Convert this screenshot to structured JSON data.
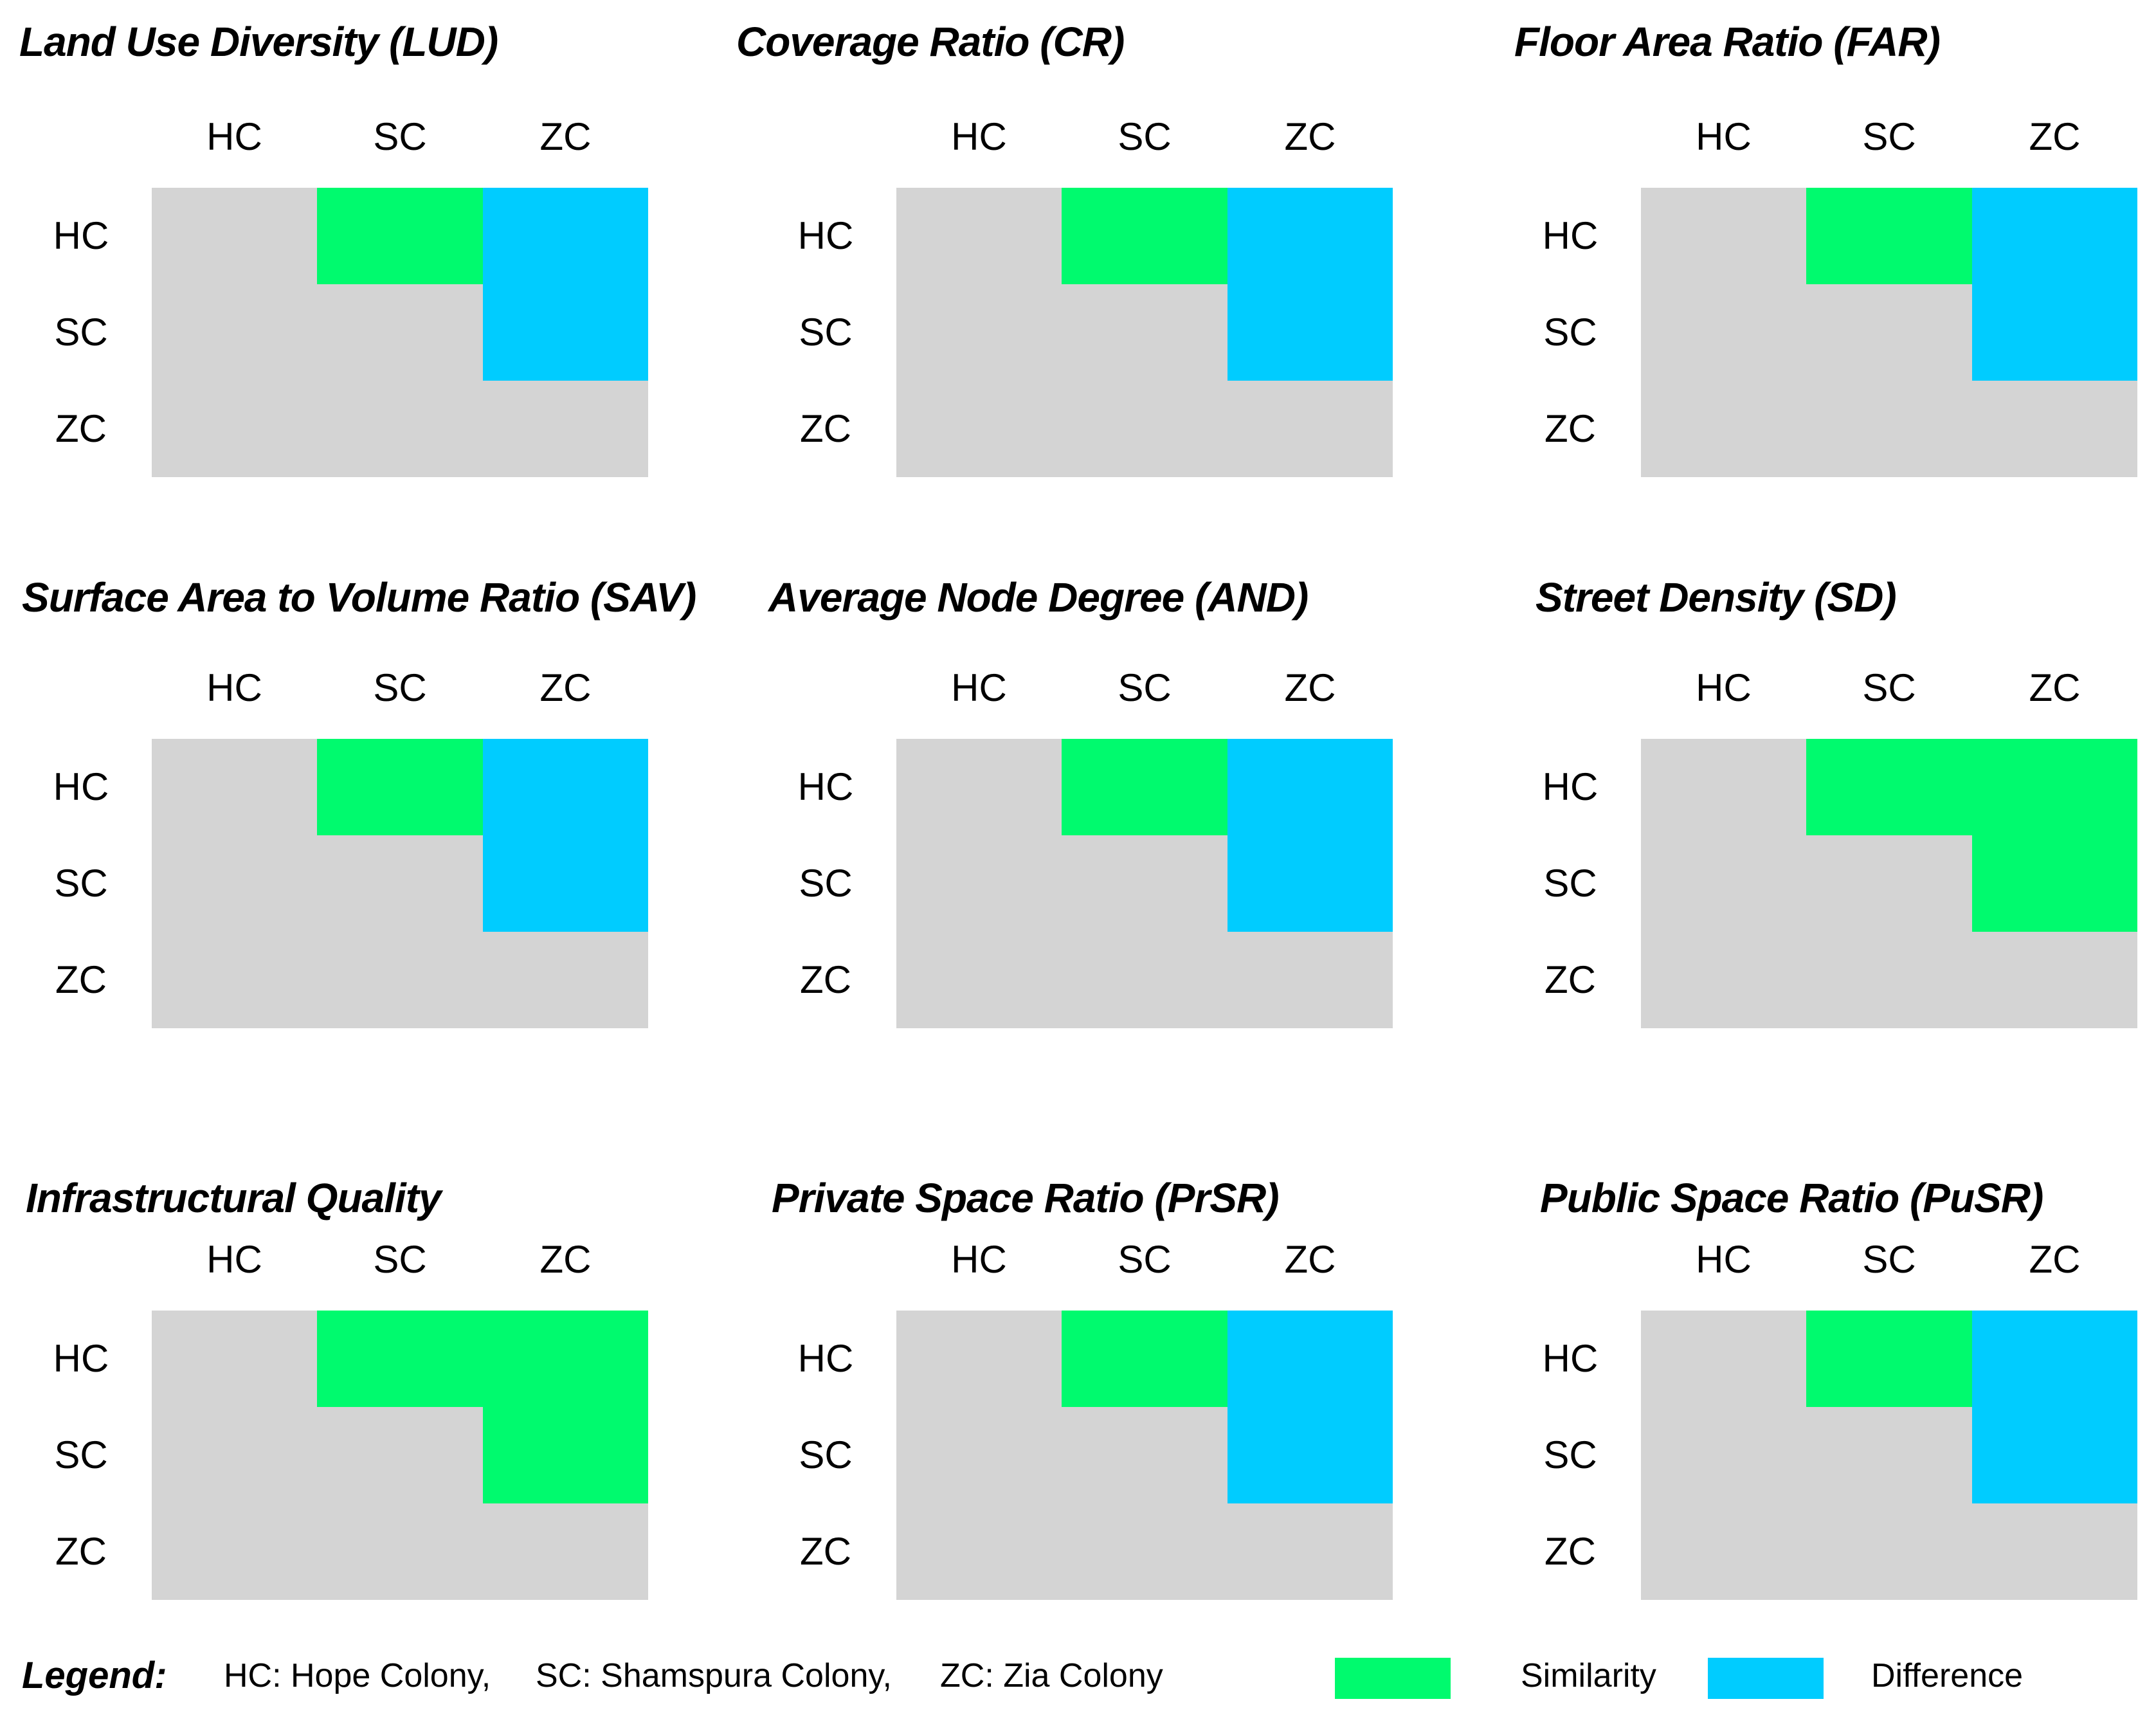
{
  "figure": {
    "axis": [
      "HC",
      "SC",
      "ZC"
    ],
    "colors": {
      "similarity": "#00FA6E",
      "difference": "#00CCFF",
      "matrix_bg": "#D4D4D4"
    },
    "panels": [
      {
        "title": "Land Use Diversity (LUD)",
        "cells": {
          "HC_SC": "similarity",
          "HC_ZC": "difference",
          "SC_ZC": "difference"
        }
      },
      {
        "title": "Coverage Ratio (CR)",
        "cells": {
          "HC_SC": "similarity",
          "HC_ZC": "difference",
          "SC_ZC": "difference"
        }
      },
      {
        "title": "Floor Area Ratio (FAR)",
        "cells": {
          "HC_SC": "similarity",
          "HC_ZC": "difference",
          "SC_ZC": "difference"
        }
      },
      {
        "title": "Surface Area to Volume Ratio (SAV)",
        "cells": {
          "HC_SC": "similarity",
          "HC_ZC": "difference",
          "SC_ZC": "difference"
        }
      },
      {
        "title": "Average Node Degree (AND)",
        "cells": {
          "HC_SC": "similarity",
          "HC_ZC": "difference",
          "SC_ZC": "difference"
        }
      },
      {
        "title": "Street Density (SD)",
        "cells": {
          "HC_SC": "similarity",
          "HC_ZC": "similarity",
          "SC_ZC": "similarity"
        }
      },
      {
        "title": "Infrastructural Quality",
        "cells": {
          "HC_SC": "similarity",
          "HC_ZC": "similarity",
          "SC_ZC": "similarity"
        }
      },
      {
        "title": "Private Space Ratio (PrSR)",
        "cells": {
          "HC_SC": "similarity",
          "HC_ZC": "difference",
          "SC_ZC": "difference"
        }
      },
      {
        "title": "Public Space Ratio (PuSR)",
        "cells": {
          "HC_SC": "similarity",
          "HC_ZC": "difference",
          "SC_ZC": "difference"
        }
      }
    ],
    "legend": {
      "label": "Legend:",
      "abbreviations": [
        "HC: Hope Colony,",
        "SC: Shamspura Colony,",
        "ZC: Zia Colony"
      ],
      "items": [
        {
          "label": "Similarity",
          "key": "similarity"
        },
        {
          "label": "Difference",
          "key": "difference"
        }
      ]
    }
  },
  "chart_data": [
    {
      "type": "heatmap",
      "title": "Land Use Diversity (LUD)",
      "categories": [
        "HC",
        "SC",
        "ZC"
      ],
      "pairs": {
        "HC-SC": "Similarity",
        "HC-ZC": "Difference",
        "SC-ZC": "Difference"
      },
      "legend": {
        "Similarity": "#00FA6E",
        "Difference": "#00CCFF"
      },
      "legend_position": "bottom"
    },
    {
      "type": "heatmap",
      "title": "Coverage Ratio (CR)",
      "categories": [
        "HC",
        "SC",
        "ZC"
      ],
      "pairs": {
        "HC-SC": "Similarity",
        "HC-ZC": "Difference",
        "SC-ZC": "Difference"
      },
      "legend": {
        "Similarity": "#00FA6E",
        "Difference": "#00CCFF"
      },
      "legend_position": "bottom"
    },
    {
      "type": "heatmap",
      "title": "Floor Area Ratio (FAR)",
      "categories": [
        "HC",
        "SC",
        "ZC"
      ],
      "pairs": {
        "HC-SC": "Similarity",
        "HC-ZC": "Difference",
        "SC-ZC": "Difference"
      },
      "legend": {
        "Similarity": "#00FA6E",
        "Difference": "#00CCFF"
      },
      "legend_position": "bottom"
    },
    {
      "type": "heatmap",
      "title": "Surface Area to Volume Ratio (SAV)",
      "categories": [
        "HC",
        "SC",
        "ZC"
      ],
      "pairs": {
        "HC-SC": "Similarity",
        "HC-ZC": "Difference",
        "SC-ZC": "Difference"
      },
      "legend": {
        "Similarity": "#00FA6E",
        "Difference": "#00CCFF"
      },
      "legend_position": "bottom"
    },
    {
      "type": "heatmap",
      "title": "Average Node Degree (AND)",
      "categories": [
        "HC",
        "SC",
        "ZC"
      ],
      "pairs": {
        "HC-SC": "Similarity",
        "HC-ZC": "Difference",
        "SC-ZC": "Difference"
      },
      "legend": {
        "Similarity": "#00FA6E",
        "Difference": "#00CCFF"
      },
      "legend_position": "bottom"
    },
    {
      "type": "heatmap",
      "title": "Street Density (SD)",
      "categories": [
        "HC",
        "SC",
        "ZC"
      ],
      "pairs": {
        "HC-SC": "Similarity",
        "HC-ZC": "Similarity",
        "SC-ZC": "Similarity"
      },
      "legend": {
        "Similarity": "#00FA6E",
        "Difference": "#00CCFF"
      },
      "legend_position": "bottom"
    },
    {
      "type": "heatmap",
      "title": "Infrastructural Quality",
      "categories": [
        "HC",
        "SC",
        "ZC"
      ],
      "pairs": {
        "HC-SC": "Similarity",
        "HC-ZC": "Similarity",
        "SC-ZC": "Similarity"
      },
      "legend": {
        "Similarity": "#00FA6E",
        "Difference": "#00CCFF"
      },
      "legend_position": "bottom"
    },
    {
      "type": "heatmap",
      "title": "Private Space Ratio (PrSR)",
      "categories": [
        "HC",
        "SC",
        "ZC"
      ],
      "pairs": {
        "HC-SC": "Similarity",
        "HC-ZC": "Difference",
        "SC-ZC": "Difference"
      },
      "legend": {
        "Similarity": "#00FA6E",
        "Difference": "#00CCFF"
      },
      "legend_position": "bottom"
    },
    {
      "type": "heatmap",
      "title": "Public Space Ratio (PuSR)",
      "categories": [
        "HC",
        "SC",
        "ZC"
      ],
      "pairs": {
        "HC-SC": "Similarity",
        "HC-ZC": "Difference",
        "SC-ZC": "Difference"
      },
      "legend": {
        "Similarity": "#00FA6E",
        "Difference": "#00CCFF"
      },
      "legend_position": "bottom"
    }
  ]
}
